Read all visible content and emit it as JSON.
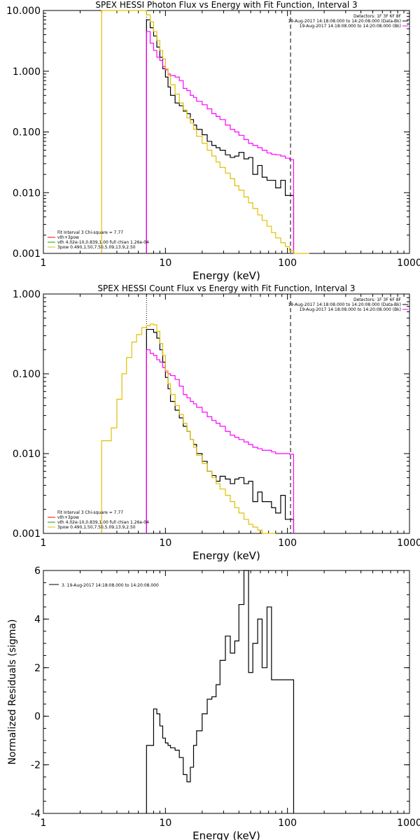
{
  "chart_data": [
    {
      "type": "line",
      "title": "SPEX HESSI Photon Flux vs Energy with Fit Function, Interval 3",
      "xlabel": "Energy (keV)",
      "ylabel": "",
      "xscale": "log",
      "yscale": "log",
      "xlim": [
        1,
        1000
      ],
      "ylim": [
        0.001,
        10
      ],
      "xticks": [
        "1",
        "10",
        "100",
        "1000"
      ],
      "yticks": [
        "0.001",
        "0.010",
        "0.100",
        "1.000",
        "10.000"
      ],
      "legend_top": [
        "Detectors: 1F 3F 6F 8F",
        "19-Aug-2017 14:18:08.000 to 14:20:08.000 (Data-Bk)",
        "19-Aug-2017 14:18:08.000 to 14:20:08.000 (Bk)"
      ],
      "legend_bottom": [
        "Fit Interval 3   Chi-square = 7.77",
        "vth+3pow",
        "vth 4.02e-10,0.839,1.00  full chian 1.26e-04",
        "3pow 0.490,1.50,7.50,5.09,13.9,2.50"
      ],
      "series": [
        {
          "color": "#000000",
          "x": [
            7,
            7.5,
            8,
            8.5,
            9,
            9.5,
            10,
            10.5,
            11,
            12,
            13,
            14,
            15,
            16,
            17,
            18,
            20,
            22,
            24,
            26,
            28,
            31,
            34,
            37,
            40,
            44,
            48,
            52,
            57,
            62,
            68,
            74,
            80,
            88,
            96,
            104
          ],
          "y": [
            7.0,
            5.2,
            3.8,
            2.5,
            1.7,
            1.1,
            0.8,
            0.55,
            0.4,
            0.3,
            0.27,
            0.22,
            0.2,
            0.16,
            0.13,
            0.11,
            0.09,
            0.07,
            0.06,
            0.055,
            0.05,
            0.042,
            0.038,
            0.04,
            0.046,
            0.036,
            0.038,
            0.02,
            0.028,
            0.018,
            0.016,
            0.016,
            0.012,
            0.016,
            0.009,
            0.009
          ]
        },
        {
          "color": "#ff00ff",
          "x": [
            7,
            7.5,
            8,
            8.5,
            9,
            9.5,
            10,
            10.5,
            11,
            12,
            13,
            14,
            15,
            16,
            17,
            18,
            20,
            22,
            24,
            26,
            28,
            31,
            34,
            37,
            40,
            44,
            48,
            52,
            57,
            62,
            68,
            74,
            80,
            88,
            96,
            104
          ],
          "y": [
            4.5,
            2.9,
            2.2,
            1.7,
            1.5,
            1.2,
            1.05,
            0.9,
            0.85,
            0.8,
            0.7,
            0.52,
            0.48,
            0.4,
            0.37,
            0.32,
            0.28,
            0.24,
            0.2,
            0.18,
            0.16,
            0.13,
            0.11,
            0.1,
            0.088,
            0.075,
            0.065,
            0.06,
            0.055,
            0.05,
            0.045,
            0.043,
            0.042,
            0.04,
            0.037,
            0.035
          ]
        },
        {
          "color": "#e0c000",
          "x": [
            3,
            3.3,
            7,
            7.5,
            8,
            8.5,
            9,
            9.5,
            10,
            10.5,
            11,
            12,
            13,
            14,
            15,
            16,
            17,
            18,
            20,
            22,
            24,
            26,
            28,
            31,
            34,
            37,
            40,
            44,
            48,
            52,
            57,
            62,
            68,
            74,
            80,
            88,
            96,
            104,
            113,
            122,
            131,
            140
          ],
          "y": [
            10,
            10,
            8.5,
            6.5,
            4.5,
            3.2,
            2.2,
            1.6,
            1.1,
            0.85,
            0.6,
            0.42,
            0.3,
            0.23,
            0.17,
            0.14,
            0.11,
            0.085,
            0.065,
            0.05,
            0.04,
            0.032,
            0.026,
            0.021,
            0.017,
            0.013,
            0.011,
            0.0085,
            0.0068,
            0.0055,
            0.0043,
            0.0035,
            0.0028,
            0.0022,
            0.0018,
            0.0015,
            0.0013,
            0.0011,
            0.001,
            0.001,
            0.001,
            0.001
          ]
        }
      ],
      "vlines": [
        {
          "x": 7,
          "style": "dotted"
        },
        {
          "x": 106,
          "style": "dashed"
        }
      ]
    },
    {
      "type": "line",
      "title": "SPEX HESSI Count Flux vs Energy with Fit Function, Interval 3",
      "xlabel": "Energy (keV)",
      "ylabel": "",
      "xscale": "log",
      "yscale": "log",
      "xlim": [
        1,
        1000
      ],
      "ylim": [
        0.001,
        1
      ],
      "xticks": [
        "1",
        "10",
        "100",
        "1000"
      ],
      "yticks": [
        "0.001",
        "0.010",
        "0.100",
        "1.000"
      ],
      "legend_top": [
        "Detectors: 1F 3F 6F 8F",
        "19-Aug-2017 14:18:08.000 to 14:20:08.000 (Data-Bk)",
        "19-Aug-2017 14:18:08.000 to 14:20:08.000 (Bk)"
      ],
      "legend_bottom": [
        "Fit Interval 3   Chi-square = 7.77",
        "vth+3pow",
        "vth 4.02e-10,0.839,1.00  full chian 1.26e-04",
        "3pow 0.490,1.50,7.50,5.09,13.9,2.50"
      ],
      "series": [
        {
          "color": "#000000",
          "x": [
            7,
            7.5,
            8,
            8.5,
            9,
            9.5,
            10,
            10.5,
            11,
            12,
            13,
            14,
            15,
            16,
            17,
            18,
            20,
            22,
            24,
            26,
            28,
            31,
            34,
            37,
            40,
            44,
            48,
            52,
            57,
            62,
            68,
            74,
            80,
            88,
            96,
            104
          ],
          "y": [
            0.36,
            0.36,
            0.33,
            0.28,
            0.2,
            0.14,
            0.09,
            0.065,
            0.045,
            0.035,
            0.028,
            0.022,
            0.019,
            0.015,
            0.013,
            0.01,
            0.008,
            0.006,
            0.0053,
            0.0045,
            0.0052,
            0.0048,
            0.0042,
            0.0048,
            0.005,
            0.0042,
            0.0045,
            0.0025,
            0.0033,
            0.0025,
            0.0025,
            0.0021,
            0.0018,
            0.003,
            0.0015,
            0.0015
          ]
        },
        {
          "color": "#ff00ff",
          "x": [
            7,
            7.5,
            8,
            8.5,
            9,
            9.5,
            10,
            10.5,
            11,
            12,
            13,
            14,
            15,
            16,
            17,
            18,
            20,
            22,
            24,
            26,
            28,
            31,
            34,
            37,
            40,
            44,
            48,
            52,
            57,
            62,
            68,
            74,
            80,
            88,
            96,
            104
          ],
          "y": [
            0.2,
            0.18,
            0.17,
            0.15,
            0.14,
            0.12,
            0.105,
            0.1,
            0.095,
            0.085,
            0.07,
            0.055,
            0.05,
            0.045,
            0.042,
            0.038,
            0.033,
            0.029,
            0.026,
            0.024,
            0.022,
            0.019,
            0.017,
            0.016,
            0.015,
            0.014,
            0.013,
            0.012,
            0.0115,
            0.011,
            0.011,
            0.0105,
            0.01,
            0.01,
            0.01,
            0.0098
          ]
        },
        {
          "color": "#e0c000",
          "x": [
            3,
            3.3,
            3.6,
            4,
            4.4,
            4.8,
            5.3,
            5.8,
            6.4,
            7,
            7.5,
            8,
            8.5,
            9,
            9.5,
            10,
            10.5,
            11,
            12,
            13,
            14,
            15,
            16,
            17,
            18,
            20,
            22,
            24,
            26,
            28,
            31,
            34,
            37,
            40,
            44,
            48,
            52,
            57,
            62,
            68,
            74
          ],
          "y": [
            0.0145,
            0.0145,
            0.021,
            0.048,
            0.1,
            0.16,
            0.25,
            0.31,
            0.38,
            0.4,
            0.42,
            0.41,
            0.34,
            0.24,
            0.17,
            0.11,
            0.075,
            0.055,
            0.04,
            0.031,
            0.024,
            0.019,
            0.015,
            0.012,
            0.0095,
            0.0075,
            0.006,
            0.005,
            0.0042,
            0.0036,
            0.003,
            0.0025,
            0.0021,
            0.0018,
            0.0015,
            0.0013,
            0.0012,
            0.0011,
            0.001,
            0.001,
            0.001
          ]
        }
      ],
      "vlines": [
        {
          "x": 7,
          "style": "dotted"
        },
        {
          "x": 106,
          "style": "dashed"
        }
      ]
    },
    {
      "type": "line",
      "title": "",
      "xlabel": "Energy (keV)",
      "ylabel": "Normalized Residuals (sigma)",
      "xscale": "log",
      "yscale": "linear",
      "xlim": [
        1,
        1000
      ],
      "ylim": [
        -4,
        6
      ],
      "xticks": [
        "1",
        "10",
        "100",
        "1000"
      ],
      "yticks": [
        "-4",
        "-2",
        "0",
        "2",
        "4",
        "6"
      ],
      "legend_top": [
        "3. 19-Aug-2017 14:18:08.000 to 14:20:08.000"
      ],
      "series": [
        {
          "color": "#000000",
          "x": [
            7,
            7.5,
            8,
            8.5,
            9,
            9.5,
            10,
            10.5,
            11,
            12,
            13,
            14,
            15,
            16,
            17,
            18,
            20,
            22,
            24,
            26,
            28,
            31,
            34,
            37,
            40,
            44,
            48,
            52,
            57,
            62,
            68,
            74,
            80,
            88,
            96,
            104
          ],
          "y": [
            -1.2,
            -1.2,
            0.3,
            0.1,
            -0.4,
            -0.9,
            -1.1,
            -1.2,
            -1.3,
            -1.4,
            -1.7,
            -2.4,
            -2.7,
            -2.1,
            -1.2,
            -0.6,
            0.1,
            0.7,
            0.8,
            1.3,
            2.3,
            3.3,
            2.6,
            3.1,
            4.6,
            6.0,
            1.8,
            3.0,
            4.0,
            2.0,
            4.5,
            1.5,
            1.5,
            1.5,
            1.5,
            1.5
          ]
        }
      ]
    }
  ]
}
